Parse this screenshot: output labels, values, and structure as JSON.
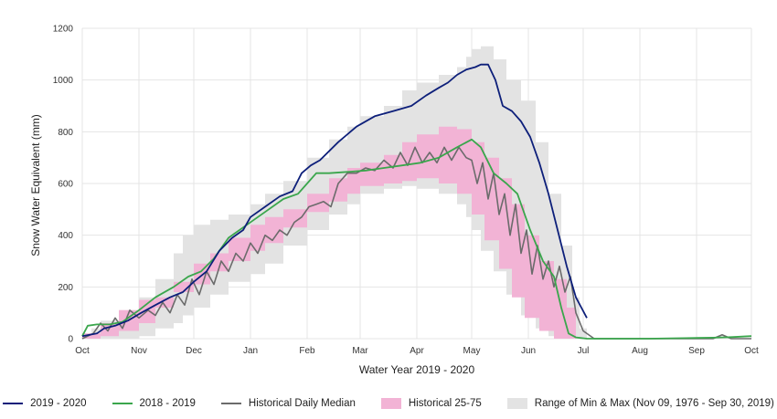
{
  "chart_data": {
    "type": "area",
    "title": "",
    "xlabel": "Water Year 2019 - 2020",
    "ylabel": "Snow Water Equivalent (mm)",
    "x_unit": "day of water year (0 = Oct 1)",
    "xlim": [
      0,
      366
    ],
    "ylim": [
      0,
      1200
    ],
    "grid": true,
    "legend_position": "bottom",
    "x_ticks": [
      {
        "day": 0,
        "label": "Oct"
      },
      {
        "day": 31,
        "label": "Nov"
      },
      {
        "day": 61,
        "label": "Dec"
      },
      {
        "day": 92,
        "label": "Jan"
      },
      {
        "day": 123,
        "label": "Feb"
      },
      {
        "day": 152,
        "label": "Mar"
      },
      {
        "day": 183,
        "label": "Apr"
      },
      {
        "day": 213,
        "label": "May"
      },
      {
        "day": 244,
        "label": "Jun"
      },
      {
        "day": 274,
        "label": "Jul"
      },
      {
        "day": 305,
        "label": "Aug"
      },
      {
        "day": 336,
        "label": "Sep"
      },
      {
        "day": 366,
        "label": "Oct"
      }
    ],
    "y_ticks": [
      0,
      200,
      400,
      600,
      800,
      1000,
      1200
    ],
    "bands": [
      {
        "name": "Range of Min & Max (Nov 09, 1976 - Sep 30, 2019)",
        "color": "#e3e3e3",
        "x": [
          0,
          5,
          10,
          20,
          31,
          40,
          50,
          55,
          61,
          70,
          80,
          92,
          100,
          110,
          123,
          135,
          145,
          152,
          165,
          175,
          183,
          195,
          205,
          210,
          213,
          218,
          225,
          232,
          240,
          248,
          255,
          262,
          268,
          272,
          276
        ],
        "upper": [
          20,
          40,
          70,
          110,
          160,
          230,
          330,
          400,
          440,
          460,
          480,
          520,
          560,
          610,
          700,
          770,
          820,
          860,
          900,
          960,
          990,
          1020,
          1050,
          1090,
          1120,
          1130,
          1080,
          1000,
          920,
          760,
          560,
          360,
          160,
          40,
          0
        ],
        "lower": [
          0,
          0,
          0,
          0,
          0,
          10,
          40,
          60,
          90,
          120,
          170,
          220,
          250,
          290,
          360,
          420,
          480,
          520,
          560,
          580,
          590,
          580,
          560,
          520,
          470,
          420,
          340,
          260,
          170,
          90,
          40,
          10,
          0,
          0,
          0
        ]
      },
      {
        "name": "Historical 25-75",
        "color": "#f2b3d5",
        "x": [
          0,
          10,
          20,
          31,
          40,
          50,
          61,
          70,
          80,
          92,
          100,
          110,
          123,
          135,
          145,
          152,
          165,
          175,
          183,
          195,
          205,
          213,
          220,
          228,
          235,
          242,
          250,
          258,
          265,
          270
        ],
        "upper": [
          20,
          60,
          110,
          150,
          160,
          220,
          290,
          330,
          390,
          440,
          470,
          500,
          560,
          620,
          660,
          680,
          710,
          760,
          790,
          820,
          810,
          760,
          700,
          620,
          520,
          400,
          300,
          230,
          120,
          20
        ],
        "lower": [
          0,
          0,
          10,
          30,
          60,
          120,
          180,
          210,
          260,
          300,
          340,
          370,
          430,
          490,
          530,
          560,
          590,
          600,
          610,
          620,
          600,
          560,
          480,
          380,
          270,
          160,
          80,
          30,
          0,
          0
        ]
      }
    ],
    "series": [
      {
        "name": "2019 - 2020",
        "color": "#0d1f7a",
        "x": [
          0,
          8,
          12,
          18,
          25,
          31,
          40,
          48,
          55,
          61,
          68,
          75,
          82,
          88,
          92,
          100,
          108,
          115,
          120,
          125,
          130,
          140,
          150,
          160,
          170,
          180,
          188,
          195,
          200,
          205,
          210,
          215,
          218,
          222,
          226,
          230,
          235,
          240,
          245,
          250,
          255,
          260,
          265,
          270,
          276
        ],
        "y": [
          10,
          20,
          40,
          50,
          70,
          95,
          130,
          160,
          180,
          220,
          260,
          340,
          390,
          420,
          470,
          510,
          550,
          570,
          640,
          670,
          690,
          760,
          820,
          860,
          880,
          900,
          940,
          970,
          990,
          1020,
          1040,
          1050,
          1060,
          1060,
          1000,
          900,
          880,
          840,
          780,
          680,
          560,
          420,
          280,
          160,
          80
        ]
      },
      {
        "name": "2018 - 2019",
        "color": "#3aa64c",
        "x": [
          0,
          3,
          8,
          15,
          22,
          31,
          40,
          50,
          58,
          65,
          72,
          80,
          90,
          100,
          110,
          118,
          123,
          128,
          135,
          145,
          155,
          165,
          175,
          185,
          195,
          205,
          213,
          218,
          225,
          232,
          238,
          245,
          252,
          258,
          262,
          266,
          270,
          276,
          290,
          310,
          330,
          345,
          355,
          366
        ],
        "y": [
          10,
          50,
          55,
          55,
          65,
          110,
          160,
          200,
          240,
          260,
          310,
          390,
          440,
          490,
          540,
          560,
          600,
          640,
          640,
          645,
          650,
          660,
          670,
          680,
          700,
          740,
          770,
          740,
          640,
          600,
          560,
          420,
          300,
          240,
          120,
          20,
          5,
          0,
          0,
          0,
          2,
          4,
          6,
          10
        ]
      },
      {
        "name": "Historical Daily Median",
        "color": "#6b6b6b",
        "x": [
          0,
          6,
          10,
          14,
          18,
          22,
          26,
          31,
          36,
          40,
          44,
          48,
          52,
          56,
          60,
          64,
          68,
          72,
          76,
          80,
          84,
          88,
          92,
          96,
          100,
          104,
          108,
          112,
          116,
          120,
          124,
          128,
          132,
          136,
          140,
          145,
          150,
          155,
          160,
          165,
          170,
          174,
          178,
          182,
          186,
          190,
          194,
          198,
          202,
          206,
          210,
          213,
          216,
          219,
          222,
          225,
          228,
          231,
          234,
          237,
          240,
          243,
          246,
          249,
          252,
          255,
          258,
          261,
          264,
          267,
          270,
          274,
          280,
          300,
          330,
          345,
          350,
          355,
          366
        ],
        "y": [
          0,
          20,
          60,
          30,
          80,
          40,
          110,
          80,
          110,
          90,
          140,
          100,
          170,
          130,
          230,
          170,
          260,
          210,
          300,
          260,
          330,
          300,
          370,
          330,
          400,
          380,
          420,
          400,
          450,
          470,
          510,
          520,
          530,
          510,
          600,
          640,
          640,
          660,
          650,
          690,
          660,
          720,
          670,
          740,
          680,
          720,
          680,
          740,
          690,
          740,
          700,
          690,
          600,
          680,
          540,
          640,
          480,
          560,
          400,
          520,
          330,
          420,
          250,
          360,
          230,
          300,
          200,
          280,
          180,
          240,
          100,
          30,
          0,
          0,
          0,
          0,
          15,
          0,
          0
        ]
      }
    ]
  },
  "legend": {
    "items": [
      {
        "label": "2019 - 2020",
        "kind": "line",
        "color": "#0d1f7a"
      },
      {
        "label": "2018 - 2019",
        "kind": "line",
        "color": "#3aa64c"
      },
      {
        "label": "Historical Daily Median",
        "kind": "line",
        "color": "#6b6b6b"
      },
      {
        "label": "Historical 25-75",
        "kind": "box",
        "color": "#f2b3d5"
      },
      {
        "label": "Range of Min & Max (Nov 09, 1976 - Sep 30, 2019)",
        "kind": "box",
        "color": "#e3e3e3"
      }
    ]
  }
}
